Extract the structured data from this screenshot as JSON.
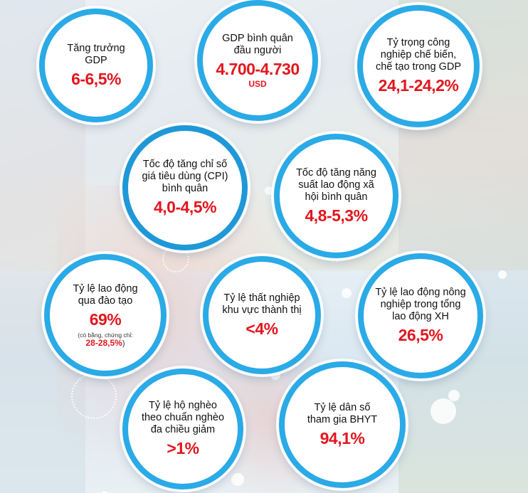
{
  "indicators": [
    {
      "label": "Tăng trưởng GDP",
      "value": "6-6,5%"
    },
    {
      "label": "GDP bình quân đầu người",
      "value": "4.700-4.730",
      "unit": "USD"
    },
    {
      "label": "Tỷ trọng công nghiệp chế biến, chế tạo trong GDP",
      "value": "24,1-24,2%"
    },
    {
      "label": "Tốc độ tăng chỉ số giá tiêu dùng (CPI) bình quân",
      "value": "4,0-4,5%"
    },
    {
      "label": "Tốc độ tăng năng suất lao động xã hội bình quân",
      "value": "4,8-5,3%"
    },
    {
      "label": "Tỷ lệ lao động qua đào tạo",
      "value": "69%",
      "note_prefix": "(có  bằng, chứng chỉ:",
      "note_value": "28-28,5%",
      "note_suffix": ")"
    },
    {
      "label": "Tỷ lệ thất nghiệp khu vực thành thị",
      "value": "<4%"
    },
    {
      "label": "Tỷ lệ lao động nông nghiệp trong tổng lao động XH",
      "value": "26,5%"
    },
    {
      "label": "Tỷ lệ hộ nghèo theo chuẩn nghèo đa chiều giảm",
      "value": ">1%"
    },
    {
      "label": "Tỷ lệ dân số tham gia BHYT",
      "value": "94,1%"
    }
  ],
  "colors": {
    "ring": "#2aaae6",
    "value": "#e2161e",
    "text": "#111111"
  }
}
